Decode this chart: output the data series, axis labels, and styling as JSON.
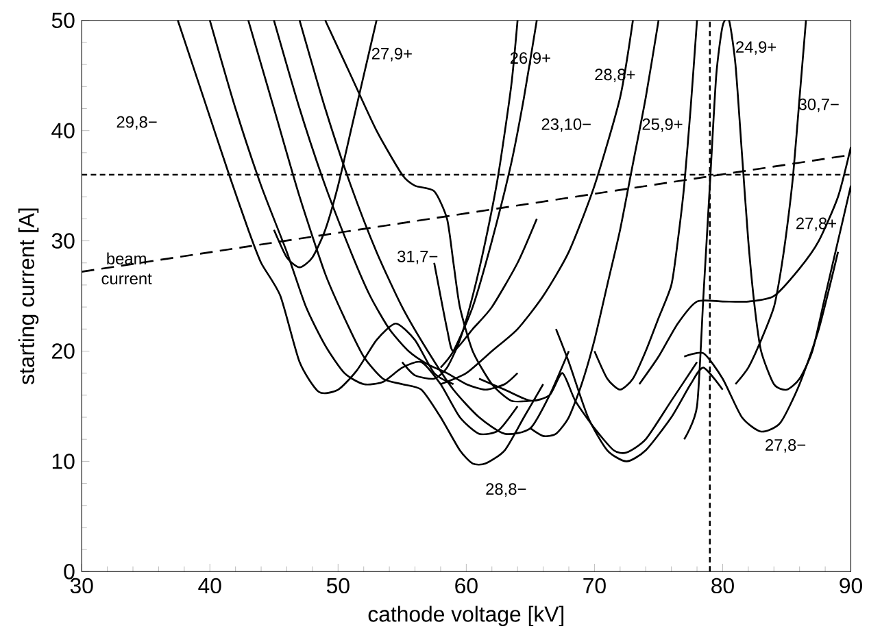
{
  "chart_data": {
    "type": "line",
    "xlabel": "cathode voltage [kV]",
    "ylabel": "starting current [A]",
    "xlim": [
      30,
      90
    ],
    "ylim": [
      0,
      50
    ],
    "xticks": [
      30,
      40,
      50,
      60,
      70,
      80,
      90
    ],
    "yticks": [
      0,
      10,
      20,
      30,
      40,
      50
    ],
    "grid": false,
    "marker": "none",
    "line_style": "solid",
    "series": [
      {
        "color": "#000000",
        "x": [
          37.5,
          39.5,
          41.5,
          43,
          44,
          45.5,
          47,
          48.5,
          50,
          51.5,
          53,
          54.5,
          56,
          57.5,
          59
        ],
        "values": [
          50,
          43,
          36,
          31,
          28,
          25,
          19,
          16.3,
          16.5,
          18.3,
          21,
          22.5,
          21,
          18,
          17
        ]
      },
      {
        "color": "#000000",
        "x": [
          40,
          42,
          44,
          46,
          47.5,
          49,
          50.5,
          52,
          53.5,
          55,
          56.5,
          58,
          59.5,
          61,
          62.5,
          64
        ],
        "values": [
          50,
          42,
          35,
          29,
          24,
          20.5,
          18,
          17,
          17.2,
          18.5,
          19,
          17,
          14,
          12.5,
          12.8,
          15
        ]
      },
      {
        "color": "#000000",
        "x": [
          43,
          45,
          47,
          49,
          50.5,
          52,
          53.5,
          55,
          56.5,
          58,
          59.5,
          60.5,
          61.5,
          63,
          64.5,
          66
        ],
        "values": [
          50,
          42,
          34,
          27,
          23,
          19.5,
          17.5,
          17,
          16.5,
          14,
          11,
          9.8,
          9.8,
          11,
          14,
          17
        ]
      },
      {
        "color": "#000000",
        "x": [
          53,
          52,
          51,
          50,
          49,
          48,
          47,
          46,
          45
        ],
        "values": [
          50,
          45,
          40,
          35,
          31,
          28.5,
          27.6,
          28.5,
          31
        ]
      },
      {
        "color": "#000000",
        "x": [
          45,
          47,
          49,
          51,
          52.5,
          54,
          55.5,
          57,
          58.5,
          60,
          61.5,
          63,
          64
        ],
        "values": [
          50,
          42,
          35,
          29,
          25,
          22,
          20,
          18.8,
          18,
          17,
          16.5,
          17,
          18
        ]
      },
      {
        "color": "#000000",
        "x": [
          47,
          49,
          51,
          53,
          55,
          57,
          59,
          61,
          63,
          65,
          66.5,
          68
        ],
        "values": [
          50,
          42,
          35,
          29,
          24,
          20,
          16.5,
          14,
          12.5,
          13,
          16,
          20
        ]
      },
      {
        "color": "#000000",
        "x": [
          49,
          51,
          53,
          55,
          56,
          57.5,
          58.5,
          59,
          59.5,
          60.5,
          62,
          63.5,
          65
        ],
        "values": [
          50,
          45,
          40,
          36,
          35,
          34.5,
          32,
          28,
          24,
          20,
          17,
          15.5,
          15.5
        ]
      },
      {
        "color": "#000000",
        "x": [
          57.5,
          58.5,
          59,
          60.5,
          62,
          64,
          65.5
        ],
        "values": [
          28,
          22,
          20,
          22,
          24,
          28,
          32
        ]
      },
      {
        "color": "#000000",
        "x": [
          64,
          63.5,
          62.5,
          61.5,
          60.5,
          59.5,
          58.5,
          57.5,
          56,
          55
        ],
        "values": [
          50,
          44,
          36,
          30,
          25,
          21,
          18.5,
          17.5,
          17.8,
          19
        ]
      },
      {
        "color": "#000000",
        "x": [
          65.5,
          64.5,
          63.5,
          62,
          60.5,
          59,
          58
        ],
        "values": [
          50,
          43,
          37,
          30,
          24,
          20,
          18.5
        ]
      },
      {
        "color": "#000000",
        "x": [
          58,
          60,
          62,
          64,
          66,
          68,
          70,
          72,
          73
        ],
        "values": [
          17,
          18,
          20,
          22,
          25,
          29,
          35,
          43,
          50
        ]
      },
      {
        "color": "#000000",
        "x": [
          75,
          74,
          73,
          72,
          71,
          70,
          69,
          68,
          67,
          66,
          65
        ],
        "values": [
          50,
          43,
          37,
          31,
          26,
          21,
          17,
          14,
          12.5,
          12.3,
          13
        ]
      },
      {
        "color": "#000000",
        "x": [
          78,
          77.5,
          77,
          76.5,
          76,
          75,
          74,
          73,
          72,
          71,
          70
        ],
        "values": [
          50,
          42,
          35,
          30,
          26,
          23,
          20,
          17.5,
          16.5,
          17.5,
          20
        ]
      },
      {
        "color": "#000000",
        "x": [
          77,
          78,
          78.5,
          79,
          79.5,
          80,
          80.5,
          81,
          81.5,
          82,
          82.5,
          83,
          84,
          85,
          86,
          87,
          88,
          89,
          90
        ],
        "values": [
          12,
          15,
          25,
          35,
          45,
          49.5,
          50,
          46,
          38,
          30,
          24,
          20,
          17,
          16.5,
          17.5,
          20,
          25,
          30,
          35
        ]
      },
      {
        "color": "#000000",
        "x": [
          86.5,
          86,
          85.5,
          85,
          84.5,
          84,
          83,
          82,
          81
        ],
        "values": [
          50,
          43,
          36,
          31,
          27,
          24,
          21,
          18.5,
          17
        ]
      },
      {
        "color": "#000000",
        "x": [
          90,
          89,
          87.5,
          86,
          84,
          82,
          80,
          78,
          76.5,
          75,
          73.5
        ],
        "values": [
          38.5,
          34,
          30,
          27.5,
          25,
          24.5,
          24.5,
          24.5,
          22.5,
          19.5,
          17
        ]
      },
      {
        "color": "#000000",
        "x": [
          77,
          78.5,
          80,
          81.5,
          83,
          84.5,
          86,
          87.5,
          89
        ],
        "values": [
          19.5,
          19.8,
          17.5,
          14,
          12.7,
          13.5,
          17,
          22,
          29
        ]
      },
      {
        "color": "#000000",
        "x": [
          67,
          68,
          69.5,
          71,
          72.5,
          74,
          76,
          77.5,
          78.5,
          80
        ],
        "values": [
          22,
          19,
          14,
          11,
          10,
          11,
          14,
          17,
          18.5,
          16.5
        ]
      },
      {
        "color": "#000000",
        "x": [
          61,
          63,
          65,
          66.5,
          67.5,
          68.5,
          70,
          71.5,
          72.5,
          74,
          76,
          78
        ],
        "values": [
          17.5,
          16.5,
          15.5,
          16,
          18,
          15.5,
          13,
          11,
          10.8,
          12,
          15.5,
          19
        ]
      },
      {
        "color": "#000000",
        "line_style": "dashed",
        "x": [
          30,
          90
        ],
        "values": [
          27.2,
          37.8
        ]
      }
    ],
    "ref_lines": [
      {
        "axis": "y",
        "value": 36,
        "line_style": "dotted",
        "color": "#000000"
      },
      {
        "axis": "x",
        "value": 79,
        "line_style": "dotted",
        "color": "#000000"
      }
    ],
    "annotations": [
      "27,9+",
      "29,8−",
      "beam current",
      "31,7−",
      "26,9+",
      "23,10−",
      "28,8+",
      "25,9+",
      "24,9+",
      "30,7−",
      "27,8+",
      "27,8−",
      "28,8−"
    ]
  }
}
